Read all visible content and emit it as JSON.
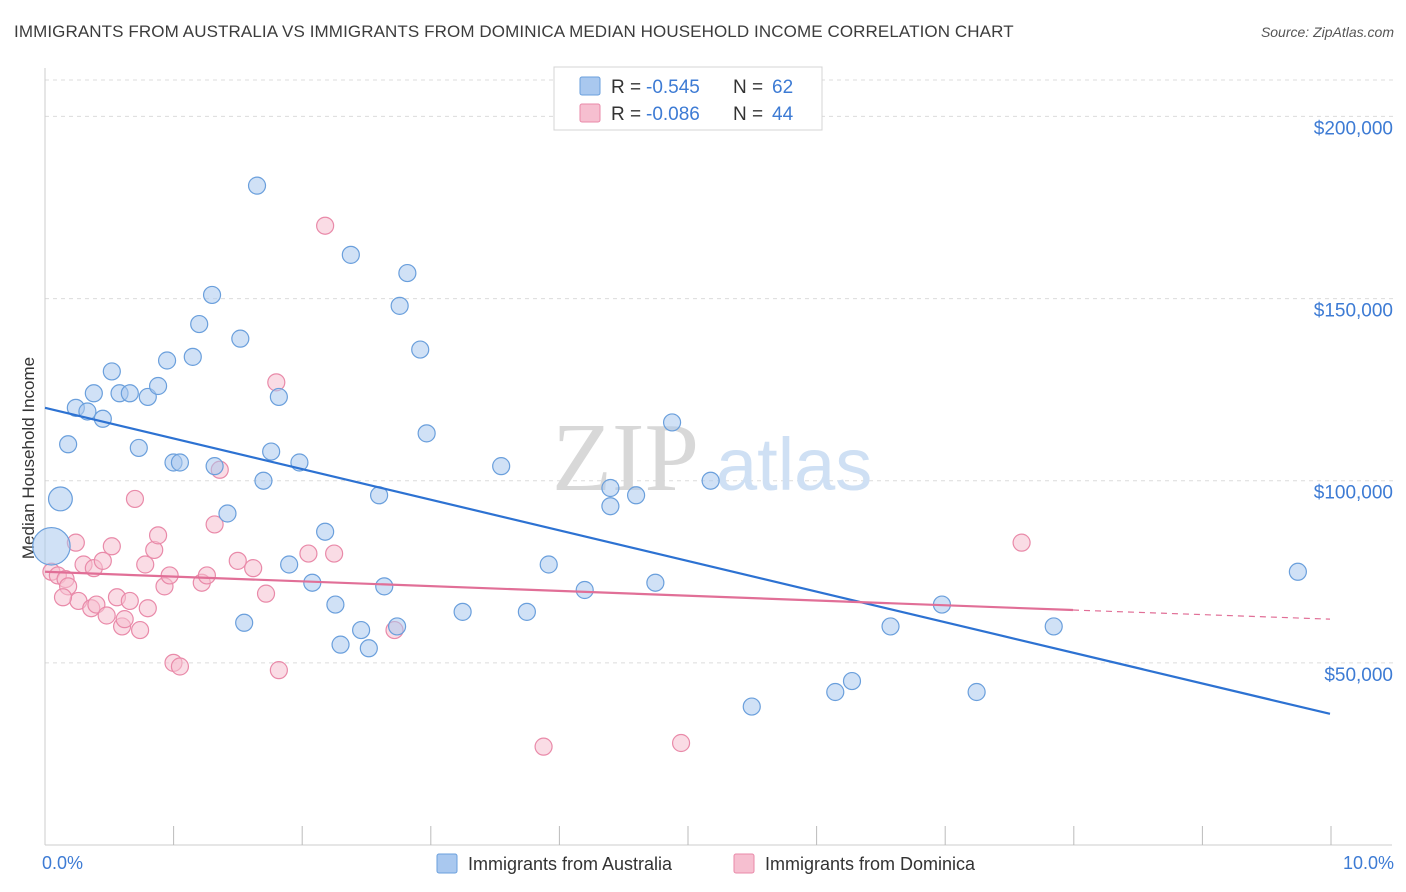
{
  "title": "IMMIGRANTS FROM AUSTRALIA VS IMMIGRANTS FROM DOMINICA MEDIAN HOUSEHOLD INCOME CORRELATION CHART",
  "source": "Source: ZipAtlas.com",
  "watermark": {
    "zip": "ZIP",
    "atlas": "atlas"
  },
  "colors": {
    "australia_fill": "#a9c8ef",
    "australia_stroke": "#6a9fdc",
    "australia_line": "#2d72d2",
    "dominica_fill": "#f6bfd0",
    "dominica_stroke": "#e98aa9",
    "dominica_line": "#e16f97",
    "grid": "#dcdcdc",
    "tick_label": "#3d7bd4"
  },
  "legend": [
    {
      "r_label": "R =",
      "r_value": "-0.545",
      "n_label": "N =",
      "n_value": "62"
    },
    {
      "r_label": "R =",
      "r_value": "-0.086",
      "n_label": "N =",
      "n_value": "44"
    }
  ],
  "chart_data": {
    "type": "scatter",
    "title": "IMMIGRANTS FROM AUSTRALIA VS IMMIGRANTS FROM DOMINICA MEDIAN HOUSEHOLD INCOME CORRELATION CHART",
    "xlabel": "",
    "ylabel": "Median Household Income",
    "xlim": [
      0,
      10
    ],
    "ylim": [
      0,
      210000
    ],
    "x_tick_labels": [
      "0.0%",
      "10.0%"
    ],
    "y_ticks": [
      50000,
      100000,
      150000,
      200000
    ],
    "y_tick_labels": [
      "$50,000",
      "$100,000",
      "$150,000",
      "$200,000"
    ],
    "series": [
      {
        "name": "Immigrants from Australia",
        "trend": {
          "x": [
            0.0,
            10.0
          ],
          "y": [
            120000,
            36000
          ]
        },
        "points": [
          {
            "x": 0.05,
            "y": 82000,
            "s": 2.2
          },
          {
            "x": 0.12,
            "y": 95000,
            "s": 1.4
          },
          {
            "x": 0.18,
            "y": 110000
          },
          {
            "x": 0.24,
            "y": 120000
          },
          {
            "x": 0.33,
            "y": 119000
          },
          {
            "x": 0.38,
            "y": 124000
          },
          {
            "x": 0.45,
            "y": 117000
          },
          {
            "x": 0.52,
            "y": 130000
          },
          {
            "x": 0.58,
            "y": 124000
          },
          {
            "x": 0.66,
            "y": 124000
          },
          {
            "x": 0.73,
            "y": 109000
          },
          {
            "x": 0.8,
            "y": 123000
          },
          {
            "x": 0.88,
            "y": 126000
          },
          {
            "x": 0.95,
            "y": 133000
          },
          {
            "x": 1.0,
            "y": 105000
          },
          {
            "x": 1.05,
            "y": 105000
          },
          {
            "x": 1.15,
            "y": 134000
          },
          {
            "x": 1.2,
            "y": 143000
          },
          {
            "x": 1.3,
            "y": 151000
          },
          {
            "x": 1.32,
            "y": 104000
          },
          {
            "x": 1.42,
            "y": 91000
          },
          {
            "x": 1.52,
            "y": 139000
          },
          {
            "x": 1.55,
            "y": 61000
          },
          {
            "x": 1.65,
            "y": 181000
          },
          {
            "x": 1.7,
            "y": 100000
          },
          {
            "x": 1.76,
            "y": 108000
          },
          {
            "x": 1.82,
            "y": 123000
          },
          {
            "x": 1.9,
            "y": 77000
          },
          {
            "x": 1.98,
            "y": 105000
          },
          {
            "x": 2.08,
            "y": 72000
          },
          {
            "x": 2.18,
            "y": 86000
          },
          {
            "x": 2.26,
            "y": 66000
          },
          {
            "x": 2.3,
            "y": 55000
          },
          {
            "x": 2.38,
            "y": 162000
          },
          {
            "x": 2.46,
            "y": 59000
          },
          {
            "x": 2.52,
            "y": 54000
          },
          {
            "x": 2.6,
            "y": 96000
          },
          {
            "x": 2.64,
            "y": 71000
          },
          {
            "x": 2.74,
            "y": 60000
          },
          {
            "x": 2.76,
            "y": 148000
          },
          {
            "x": 2.82,
            "y": 157000
          },
          {
            "x": 2.92,
            "y": 136000
          },
          {
            "x": 2.97,
            "y": 113000
          },
          {
            "x": 3.25,
            "y": 64000
          },
          {
            "x": 3.55,
            "y": 104000
          },
          {
            "x": 3.75,
            "y": 64000
          },
          {
            "x": 3.92,
            "y": 77000
          },
          {
            "x": 4.2,
            "y": 70000
          },
          {
            "x": 4.4,
            "y": 98000
          },
          {
            "x": 4.4,
            "y": 93000
          },
          {
            "x": 4.6,
            "y": 96000
          },
          {
            "x": 4.75,
            "y": 72000
          },
          {
            "x": 4.88,
            "y": 116000
          },
          {
            "x": 5.18,
            "y": 100000
          },
          {
            "x": 5.5,
            "y": 38000
          },
          {
            "x": 6.15,
            "y": 42000
          },
          {
            "x": 6.28,
            "y": 45000
          },
          {
            "x": 6.58,
            "y": 60000
          },
          {
            "x": 6.98,
            "y": 66000
          },
          {
            "x": 7.25,
            "y": 42000
          },
          {
            "x": 7.85,
            "y": 60000
          },
          {
            "x": 9.75,
            "y": 75000
          }
        ]
      },
      {
        "name": "Immigrants from Dominica",
        "trend": {
          "x": [
            0.0,
            8.0
          ],
          "y": [
            75000,
            64500
          ]
        },
        "trend_dashed": {
          "x": [
            8.0,
            10.0
          ],
          "y": [
            64500,
            62000
          ]
        },
        "points": [
          {
            "x": 0.05,
            "y": 75000
          },
          {
            "x": 0.1,
            "y": 74000
          },
          {
            "x": 0.16,
            "y": 73000
          },
          {
            "x": 0.18,
            "y": 71000
          },
          {
            "x": 0.24,
            "y": 83000
          },
          {
            "x": 0.26,
            "y": 67000
          },
          {
            "x": 0.3,
            "y": 77000
          },
          {
            "x": 0.36,
            "y": 65000
          },
          {
            "x": 0.38,
            "y": 76000
          },
          {
            "x": 0.4,
            "y": 66000
          },
          {
            "x": 0.45,
            "y": 78000
          },
          {
            "x": 0.48,
            "y": 63000
          },
          {
            "x": 0.52,
            "y": 82000
          },
          {
            "x": 0.56,
            "y": 68000
          },
          {
            "x": 0.6,
            "y": 60000
          },
          {
            "x": 0.62,
            "y": 62000
          },
          {
            "x": 0.66,
            "y": 67000
          },
          {
            "x": 0.7,
            "y": 95000
          },
          {
            "x": 0.74,
            "y": 59000
          },
          {
            "x": 0.78,
            "y": 77000
          },
          {
            "x": 0.8,
            "y": 65000
          },
          {
            "x": 0.85,
            "y": 81000
          },
          {
            "x": 0.88,
            "y": 85000
          },
          {
            "x": 0.93,
            "y": 71000
          },
          {
            "x": 0.97,
            "y": 74000
          },
          {
            "x": 1.0,
            "y": 50000
          },
          {
            "x": 1.05,
            "y": 49000
          },
          {
            "x": 1.22,
            "y": 72000
          },
          {
            "x": 1.26,
            "y": 74000
          },
          {
            "x": 1.32,
            "y": 88000
          },
          {
            "x": 1.36,
            "y": 103000
          },
          {
            "x": 1.5,
            "y": 78000
          },
          {
            "x": 1.62,
            "y": 76000
          },
          {
            "x": 1.72,
            "y": 69000
          },
          {
            "x": 1.8,
            "y": 127000
          },
          {
            "x": 1.82,
            "y": 48000
          },
          {
            "x": 2.05,
            "y": 80000
          },
          {
            "x": 2.18,
            "y": 170000
          },
          {
            "x": 2.25,
            "y": 80000
          },
          {
            "x": 2.72,
            "y": 59000
          },
          {
            "x": 3.88,
            "y": 27000
          },
          {
            "x": 4.95,
            "y": 28000
          },
          {
            "x": 7.6,
            "y": 83000
          },
          {
            "x": 0.14,
            "y": 68000
          }
        ]
      }
    ]
  }
}
